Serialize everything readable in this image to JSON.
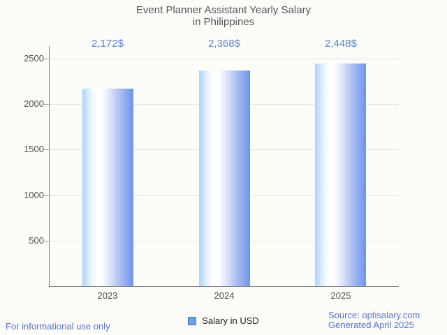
{
  "title": {
    "line1": "Event Planner Assistant Yearly Salary",
    "line2": "in Philippines"
  },
  "chart_data": {
    "type": "bar",
    "title": "Event Planner Assistant Yearly Salary in Philippines",
    "categories": [
      "2023",
      "2024",
      "2025"
    ],
    "values": [
      2172,
      2368,
      2448
    ],
    "value_labels": [
      "2,172$",
      "2,368$",
      "2,448$"
    ],
    "series_name": "Salary in USD",
    "xlabel": "",
    "ylabel": "",
    "ylim": [
      0,
      2500
    ],
    "yticks": [
      500,
      1000,
      1500,
      2000,
      2500
    ],
    "grid": true,
    "legend_position": "bottom"
  },
  "legend": {
    "label": "Salary in USD"
  },
  "footer": {
    "disclaimer": "For informational use only",
    "source": "Source: optisalary.com",
    "generated": "Generated April 2025"
  },
  "colors": {
    "value_label": "#5b83d9",
    "footer_text": "#5673d2",
    "title_text": "#555558",
    "axis_label": "#4e4e4e",
    "bar_light": "#a8d4ff",
    "bar_dark": "#6e94e9",
    "legend_fill": "#6d9eeb",
    "legend_border": "#3b77d8"
  }
}
